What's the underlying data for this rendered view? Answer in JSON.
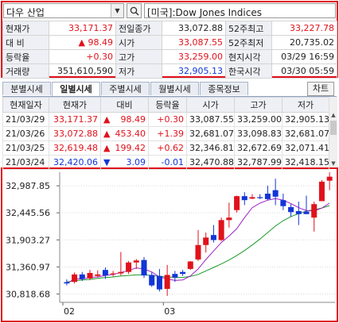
{
  "search": {
    "symbol": "다우 산업",
    "market_title": "[미국]:Dow Jones Indices",
    "icons": [
      "chevron-down-icon",
      "search-icon"
    ]
  },
  "info": {
    "rows": [
      [
        {
          "t": "현재가",
          "c": "lbl"
        },
        {
          "t": "33,171.37",
          "c": "num red"
        },
        {
          "t": "전일종가",
          "c": "lbl"
        },
        {
          "t": "33,072.88",
          "c": "num"
        },
        {
          "t": "52주최고",
          "c": "lbl"
        },
        {
          "t": "33,227.78",
          "c": "num red"
        }
      ],
      [
        {
          "t": "대  비",
          "c": "lbl"
        },
        {
          "t": "▲   98.49",
          "c": "num red"
        },
        {
          "t": "시가",
          "c": "lbl"
        },
        {
          "t": "33,087.55",
          "c": "num red"
        },
        {
          "t": "52주최저",
          "c": "lbl"
        },
        {
          "t": "20,735.02",
          "c": "num"
        }
      ],
      [
        {
          "t": "등락율",
          "c": "lbl"
        },
        {
          "t": "+0.30",
          "c": "num red"
        },
        {
          "t": "고가",
          "c": "lbl"
        },
        {
          "t": "33,259.00",
          "c": "num red"
        },
        {
          "t": "현지시각",
          "c": "lbl"
        },
        {
          "t": "03/29 16:59",
          "c": "num"
        }
      ],
      [
        {
          "t": "거래량",
          "c": "lbl"
        },
        {
          "t": "351,610,590",
          "c": "num"
        },
        {
          "t": "저가",
          "c": "lbl"
        },
        {
          "t": "32,905.13",
          "c": "num blue"
        },
        {
          "t": "한국시각",
          "c": "lbl"
        },
        {
          "t": "03/30 05:59",
          "c": "num"
        }
      ]
    ]
  },
  "tabs": [
    "분별시세",
    "일별시세",
    "주별시세",
    "월별시세",
    "종목정보"
  ],
  "active_tab": 1,
  "chart_button": "차트",
  "grid": {
    "headers": [
      "현재일자",
      "현재가",
      "대비",
      "등락율",
      "시가",
      "고가",
      "저가"
    ],
    "rows": [
      {
        "date": "21/03/29",
        "price": "33,171.37",
        "dir": "▲",
        "diff": "98.49",
        "rate": "+0.30",
        "open": "33,087.55",
        "high": "33,259.00",
        "low": "32,905.13",
        "color": "red"
      },
      {
        "date": "21/03/26",
        "price": "33,072.88",
        "dir": "▲",
        "diff": "453.40",
        "rate": "+1.39",
        "open": "32,681.07",
        "high": "33,098.83",
        "low": "32,681.07",
        "color": "red"
      },
      {
        "date": "21/03/25",
        "price": "32,619.48",
        "dir": "▲",
        "diff": "199.42",
        "rate": "+0.62",
        "open": "32,346.81",
        "high": "32,672.69",
        "low": "32,071.41",
        "color": "red"
      },
      {
        "date": "21/03/24",
        "price": "32,420.06",
        "dir": "▼",
        "diff": "3.09",
        "rate": "-0.01",
        "open": "32,470.88",
        "high": "32,787.99",
        "low": "32,418.15",
        "color": "blue"
      }
    ]
  },
  "colors": {
    "up": "#e0121b",
    "down": "#1235d6",
    "ma_short": "#a020c8",
    "ma_long": "#1a9a2a",
    "frame": "#e0121b"
  },
  "chart_data": {
    "type": "candlestick",
    "y_ticks": [
      30818.68,
      31360.97,
      31903.27,
      32445.56,
      32987.85
    ],
    "y_tick_labels": [
      "30,818.68",
      "31,360.97",
      "31,903.27",
      "32,445.56",
      "32,987.85"
    ],
    "ylim": [
      30650,
      33260
    ],
    "x_labels": [
      {
        "label": "02",
        "index": 0
      },
      {
        "label": "03",
        "index": 13
      }
    ],
    "candles": [
      {
        "o": 31055,
        "h": 31110,
        "l": 30990,
        "c": 31030
      },
      {
        "o": 31060,
        "h": 31250,
        "l": 31030,
        "c": 31210
      },
      {
        "o": 31210,
        "h": 31260,
        "l": 31080,
        "c": 31120
      },
      {
        "o": 31130,
        "h": 31300,
        "l": 31100,
        "c": 31240
      },
      {
        "o": 31180,
        "h": 31290,
        "l": 31150,
        "c": 31210
      },
      {
        "o": 31300,
        "h": 31350,
        "l": 31120,
        "c": 31190
      },
      {
        "o": 31210,
        "h": 31280,
        "l": 31170,
        "c": 31230
      },
      {
        "o": 31230,
        "h": 31660,
        "l": 31190,
        "c": 31260
      },
      {
        "o": 31260,
        "h": 31480,
        "l": 31220,
        "c": 31450
      },
      {
        "o": 31450,
        "h": 31520,
        "l": 31320,
        "c": 31490
      },
      {
        "o": 31500,
        "h": 31560,
        "l": 31140,
        "c": 31190
      },
      {
        "o": 31200,
        "h": 31250,
        "l": 30960,
        "c": 30990
      },
      {
        "o": 31180,
        "h": 31320,
        "l": 30870,
        "c": 30910
      },
      {
        "o": 30920,
        "h": 31400,
        "l": 30780,
        "c": 31200
      },
      {
        "o": 31220,
        "h": 31280,
        "l": 31060,
        "c": 31150
      },
      {
        "o": 31260,
        "h": 31300,
        "l": 31180,
        "c": 31220
      },
      {
        "o": 31320,
        "h": 31480,
        "l": 31300,
        "c": 31470
      },
      {
        "o": 31510,
        "h": 32100,
        "l": 31480,
        "c": 31800
      },
      {
        "o": 31800,
        "h": 32050,
        "l": 31650,
        "c": 31950
      },
      {
        "o": 32000,
        "h": 32200,
        "l": 31850,
        "c": 31900
      },
      {
        "o": 31900,
        "h": 32350,
        "l": 31880,
        "c": 32300
      },
      {
        "o": 32300,
        "h": 32650,
        "l": 32150,
        "c": 32350
      },
      {
        "o": 32500,
        "h": 32790,
        "l": 32450,
        "c": 32780
      },
      {
        "o": 32780,
        "h": 32860,
        "l": 32600,
        "c": 32700
      },
      {
        "o": 32730,
        "h": 32820,
        "l": 32720,
        "c": 32760
      },
      {
        "o": 32760,
        "h": 32820,
        "l": 32720,
        "c": 32740
      },
      {
        "o": 32830,
        "h": 32990,
        "l": 32700,
        "c": 32720
      },
      {
        "o": 32900,
        "h": 33130,
        "l": 32600,
        "c": 32770
      },
      {
        "o": 32700,
        "h": 32830,
        "l": 32500,
        "c": 32580
      },
      {
        "o": 32560,
        "h": 32620,
        "l": 32370,
        "c": 32460
      },
      {
        "o": 32480,
        "h": 32670,
        "l": 32200,
        "c": 32420
      },
      {
        "o": 32470,
        "h": 32790,
        "l": 32420,
        "c": 32420
      },
      {
        "o": 32350,
        "h": 32670,
        "l": 32070,
        "c": 32620
      },
      {
        "o": 32680,
        "h": 33100,
        "l": 32680,
        "c": 33070
      },
      {
        "o": 33090,
        "h": 33260,
        "l": 32900,
        "c": 33170
      }
    ],
    "ma_short": [
      31030,
      31120,
      31120,
      31150,
      31160,
      31190,
      31210,
      31250,
      31290,
      31340,
      31320,
      31260,
      31160,
      31120,
      31090,
      31100,
      31180,
      31320,
      31510,
      31680,
      31850,
      31980,
      32130,
      32350,
      32550,
      32640,
      32700,
      32730,
      32700,
      32630,
      32550,
      32490,
      32480,
      32540,
      32640
    ],
    "ma_long": [
      31060,
      31080,
      31100,
      31110,
      31130,
      31150,
      31160,
      31180,
      31190,
      31200,
      31200,
      31190,
      31170,
      31160,
      31150,
      31150,
      31170,
      31210,
      31280,
      31350,
      31420,
      31500,
      31590,
      31690,
      31800,
      31920,
      32050,
      32180,
      32290,
      32370,
      32430,
      32480,
      32510,
      32540,
      32590
    ]
  }
}
